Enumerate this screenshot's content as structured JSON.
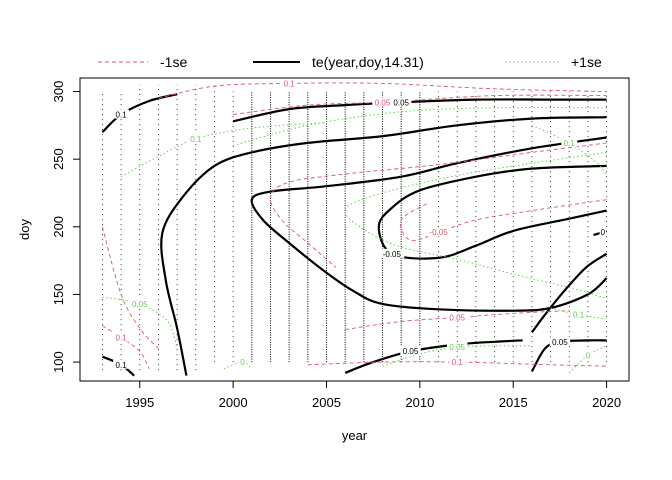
{
  "chart_data": {
    "type": "contour",
    "xlabel": "year",
    "ylabel": "doy",
    "xlim": [
      1991.8,
      2021.2
    ],
    "ylim": [
      86,
      310
    ],
    "xticks": [
      1995,
      2000,
      2005,
      2010,
      2015,
      2020
    ],
    "yticks": [
      100,
      150,
      200,
      250,
      300
    ],
    "legend": {
      "placement": "top",
      "entries": [
        {
          "label": "-1se",
          "style": "dashed",
          "color": "#DF536B"
        },
        {
          "label": "te(year,doy,14.31)",
          "style": "solid",
          "color": "#000000"
        },
        {
          "label": "+1se",
          "style": "dotted",
          "color": "#61D04F"
        }
      ]
    },
    "series": [
      {
        "name": "te(year,doy,14.31)",
        "style": "solid",
        "color": "#000000",
        "contours": [
          {
            "label": "0.1",
            "points": [
              [
                1993,
                270
              ],
              [
                1994,
                283
              ],
              [
                1995.5,
                293
              ],
              [
                1997,
                298
              ]
            ]
          },
          {
            "label": "0.05",
            "points": [
              [
                2000,
                278
              ],
              [
                2003,
                287
              ],
              [
                2006,
                290
              ],
              [
                2009,
                292
              ],
              [
                2013,
                294
              ],
              [
                2017,
                294
              ],
              [
                2020,
                294
              ]
            ]
          },
          {
            "label": "",
            "points": [
              [
                2020,
                281
              ],
              [
                2016,
                280
              ],
              [
                2012,
                275
              ],
              [
                2008,
                267
              ],
              [
                2004,
                262
              ],
              [
                2001,
                255
              ],
              [
                1999,
                245
              ],
              [
                1997.3,
                222
              ],
              [
                1996.2,
                195
              ],
              [
                1996.4,
                160
              ],
              [
                1997,
                125
              ],
              [
                1997.5,
                90
              ]
            ]
          },
          {
            "label": "",
            "points": [
              [
                2020,
                266
              ],
              [
                2016,
                258
              ],
              [
                2012,
                247
              ],
              [
                2009,
                237
              ],
              [
                2005,
                230
              ],
              [
                2002,
                226
              ],
              [
                2001,
                220
              ],
              [
                2001.6,
                205
              ],
              [
                2003,
                188
              ],
              [
                2005,
                166
              ],
              [
                2006.5,
                152
              ],
              [
                2008,
                143
              ],
              [
                2011,
                139
              ],
              [
                2015,
                138
              ],
              [
                2017,
                140
              ],
              [
                2019,
                150
              ],
              [
                2020,
                162
              ]
            ]
          },
          {
            "label": "-0.05",
            "points": [
              [
                2020,
                212
              ],
              [
                2018,
                206
              ],
              [
                2015,
                197
              ],
              [
                2013,
                186
              ],
              [
                2011,
                177
              ],
              [
                2008.5,
                180
              ],
              [
                2007.8,
                200
              ],
              [
                2008.5,
                214
              ],
              [
                2010,
                227
              ],
              [
                2013,
                237
              ],
              [
                2016,
                243
              ],
              [
                2020,
                245
              ]
            ]
          },
          {
            "label": "0",
            "points": [
              [
                2019.3,
                194
              ],
              [
                2019.8,
                196
              ],
              [
                2020,
                197
              ]
            ]
          },
          {
            "label": "0.05",
            "points": [
              [
                2006,
                92
              ],
              [
                2007.5,
                100
              ],
              [
                2009.5,
                108
              ],
              [
                2012,
                113
              ],
              [
                2014,
                115
              ],
              [
                2015.5,
                116
              ]
            ]
          },
          {
            "label": "0.05",
            "points": [
              [
                2016,
                93
              ],
              [
                2016.7,
                110
              ],
              [
                2017.5,
                115
              ],
              [
                2019,
                116
              ],
              [
                2020,
                116
              ]
            ]
          },
          {
            "label": "",
            "points": [
              [
                2016,
                122
              ],
              [
                2016.7,
                135
              ],
              [
                2017.7,
                152
              ],
              [
                2018.9,
                170
              ],
              [
                2020,
                180
              ]
            ]
          },
          {
            "label": "0.1",
            "points": [
              [
                1993,
                104
              ],
              [
                1994,
                98
              ],
              [
                1994.7,
                90
              ]
            ]
          }
        ]
      },
      {
        "name": "-1se",
        "style": "dashed",
        "color": "#DF536B",
        "contours": [
          {
            "label": "0.1",
            "points": [
              [
                1996,
                295
              ],
              [
                1999,
                304
              ],
              [
                2003,
                306
              ],
              [
                2008,
                306
              ],
              [
                2014,
                302
              ],
              [
                2020,
                300
              ]
            ]
          },
          {
            "label": "0.05",
            "points": [
              [
                2000,
                283
              ],
              [
                2004,
                290
              ],
              [
                2008,
                292
              ],
              [
                2014,
                297
              ],
              [
                2020,
                297
              ]
            ]
          },
          {
            "label": "",
            "points": [
              [
                2020,
                262
              ],
              [
                2016,
                255
              ],
              [
                2011,
                246
              ],
              [
                2006,
                239
              ],
              [
                2003,
                233
              ],
              [
                2002,
                222
              ],
              [
                2002.6,
                205
              ],
              [
                2004,
                188
              ],
              [
                2005.5,
                170
              ]
            ]
          },
          {
            "label": "-0.05",
            "points": [
              [
                2020,
                220
              ],
              [
                2016,
                212
              ],
              [
                2013,
                205
              ],
              [
                2011,
                196
              ],
              [
                2009.5,
                190
              ],
              [
                2009,
                205
              ],
              [
                2010.5,
                218
              ]
            ]
          },
          {
            "label": "0.05",
            "points": [
              [
                2006,
                124
              ],
              [
                2009,
                130
              ],
              [
                2012,
                133
              ],
              [
                2015,
                136
              ],
              [
                2018,
                138
              ]
            ]
          },
          {
            "label": "0.1",
            "points": [
              [
                2004,
                98
              ],
              [
                2008,
                100
              ],
              [
                2012,
                100
              ],
              [
                2017,
                98
              ],
              [
                2020,
                97
              ]
            ]
          },
          {
            "label": "0.1",
            "points": [
              [
                1993,
                127
              ],
              [
                1994,
                118
              ],
              [
                1995,
                108
              ],
              [
                1995.5,
                95
              ]
            ]
          },
          {
            "label": "",
            "points": [
              [
                1993,
                200
              ],
              [
                1994,
                150
              ],
              [
                1995,
                125
              ],
              [
                1996,
                110
              ]
            ]
          }
        ]
      },
      {
        "name": "+1se",
        "style": "dotted",
        "color": "#61D04F",
        "contours": [
          {
            "label": "0.1",
            "points": [
              [
                1994,
                237
              ],
              [
                1996,
                252
              ],
              [
                1998,
                265
              ],
              [
                2001,
                273
              ],
              [
                2005,
                277
              ]
            ]
          },
          {
            "label": "",
            "points": [
              [
                2000,
                260
              ],
              [
                2004,
                275
              ],
              [
                2009,
                285
              ],
              [
                2014,
                288
              ],
              [
                2020,
                288
              ]
            ]
          },
          {
            "label": "",
            "points": [
              [
                2020,
                255
              ],
              [
                2016,
                247
              ],
              [
                2012,
                238
              ],
              [
                2008,
                225
              ],
              [
                2006,
                213
              ],
              [
                2007,
                198
              ],
              [
                2009,
                185
              ],
              [
                2012,
                176
              ],
              [
                2015,
                165
              ],
              [
                2018,
                155
              ],
              [
                2020,
                147
              ]
            ]
          },
          {
            "label": "0.1",
            "points": [
              [
                2016,
                275
              ],
              [
                2018,
                262
              ],
              [
                2019.5,
                247
              ],
              [
                2020,
                238
              ]
            ]
          },
          {
            "label": "0.05",
            "points": [
              [
                1993,
                148
              ],
              [
                1995,
                143
              ],
              [
                1996.5,
                130
              ],
              [
                1997,
                110
              ]
            ]
          },
          {
            "label": "0.05",
            "points": [
              [
                2008,
                97
              ],
              [
                2010,
                106
              ],
              [
                2012,
                111
              ],
              [
                2014,
                112
              ],
              [
                2016,
                112
              ]
            ]
          },
          {
            "label": "0",
            "points": [
              [
                2018,
                92
              ],
              [
                2019,
                105
              ],
              [
                2020,
                112
              ]
            ]
          },
          {
            "label": "0",
            "points": [
              [
                1999.5,
                95
              ],
              [
                2000.5,
                100
              ],
              [
                2001,
                95
              ]
            ]
          },
          {
            "label": "0.1",
            "points": [
              [
                2017,
                140
              ],
              [
                2018.5,
                135
              ],
              [
                2020,
                132
              ]
            ]
          }
        ]
      }
    ]
  }
}
